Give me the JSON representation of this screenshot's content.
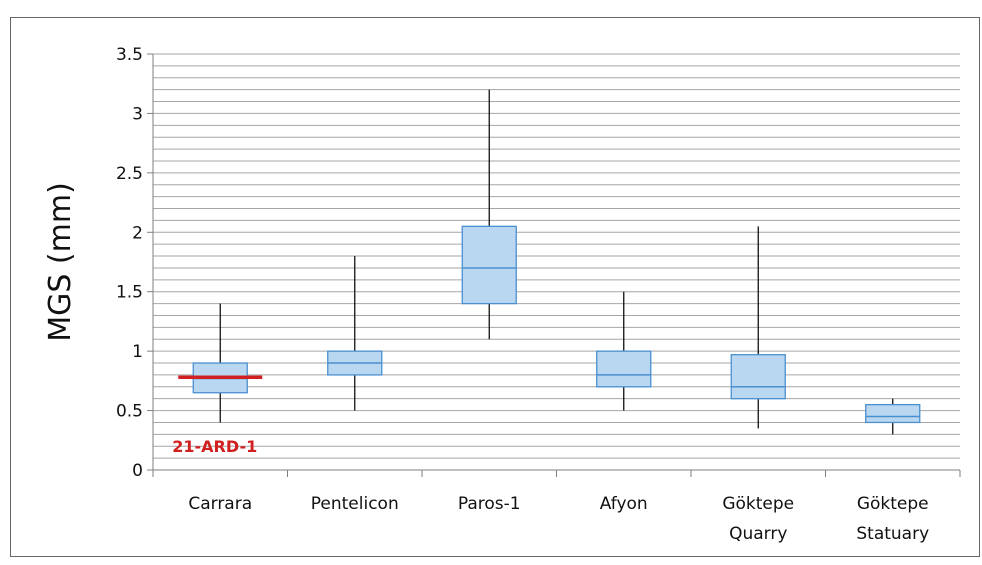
{
  "chart_data": {
    "type": "boxplot",
    "title": "",
    "ylabel": "MGS (mm)",
    "ylim": [
      0,
      3.5
    ],
    "y_major_ticks": [
      0,
      0.5,
      1,
      1.5,
      2,
      2.5,
      3,
      3.5
    ],
    "y_tick_labels": [
      "0",
      "0.5",
      "1",
      "1.5",
      "2",
      "2.5",
      "3",
      "3.5"
    ],
    "y_minor_step": 0.1,
    "grid": true,
    "categories": [
      {
        "lines": [
          "Carrara"
        ]
      },
      {
        "lines": [
          "Pentelicon"
        ]
      },
      {
        "lines": [
          "Paros-1"
        ]
      },
      {
        "lines": [
          "Afyon"
        ]
      },
      {
        "lines": [
          "Göktepe",
          "Quarry"
        ]
      },
      {
        "lines": [
          "Göktepe",
          "Statuary"
        ]
      }
    ],
    "boxes": [
      {
        "min": 0.4,
        "q1": 0.65,
        "median": 0.77,
        "q3": 0.9,
        "max": 1.4
      },
      {
        "min": 0.5,
        "q1": 0.8,
        "median": 0.9,
        "q3": 1.0,
        "max": 1.8
      },
      {
        "min": 1.1,
        "q1": 1.4,
        "median": 1.7,
        "q3": 2.05,
        "max": 3.2
      },
      {
        "min": 0.5,
        "q1": 0.7,
        "median": 0.8,
        "q3": 1.0,
        "max": 1.5
      },
      {
        "min": 0.35,
        "q1": 0.6,
        "median": 0.7,
        "q3": 0.97,
        "max": 2.05
      },
      {
        "min": 0.3,
        "q1": 0.4,
        "median": 0.45,
        "q3": 0.55,
        "max": 0.6
      }
    ],
    "annotation": {
      "label": "21-ARD-1",
      "value": 0.78,
      "category_index": 0,
      "color": "#d0201f"
    },
    "colors": {
      "box_fill": "#b9d7f0",
      "box_stroke": "#4a90d0",
      "whisker": "#111111",
      "grid": "#a6a6a6",
      "axis": "#7f7f7f"
    }
  }
}
